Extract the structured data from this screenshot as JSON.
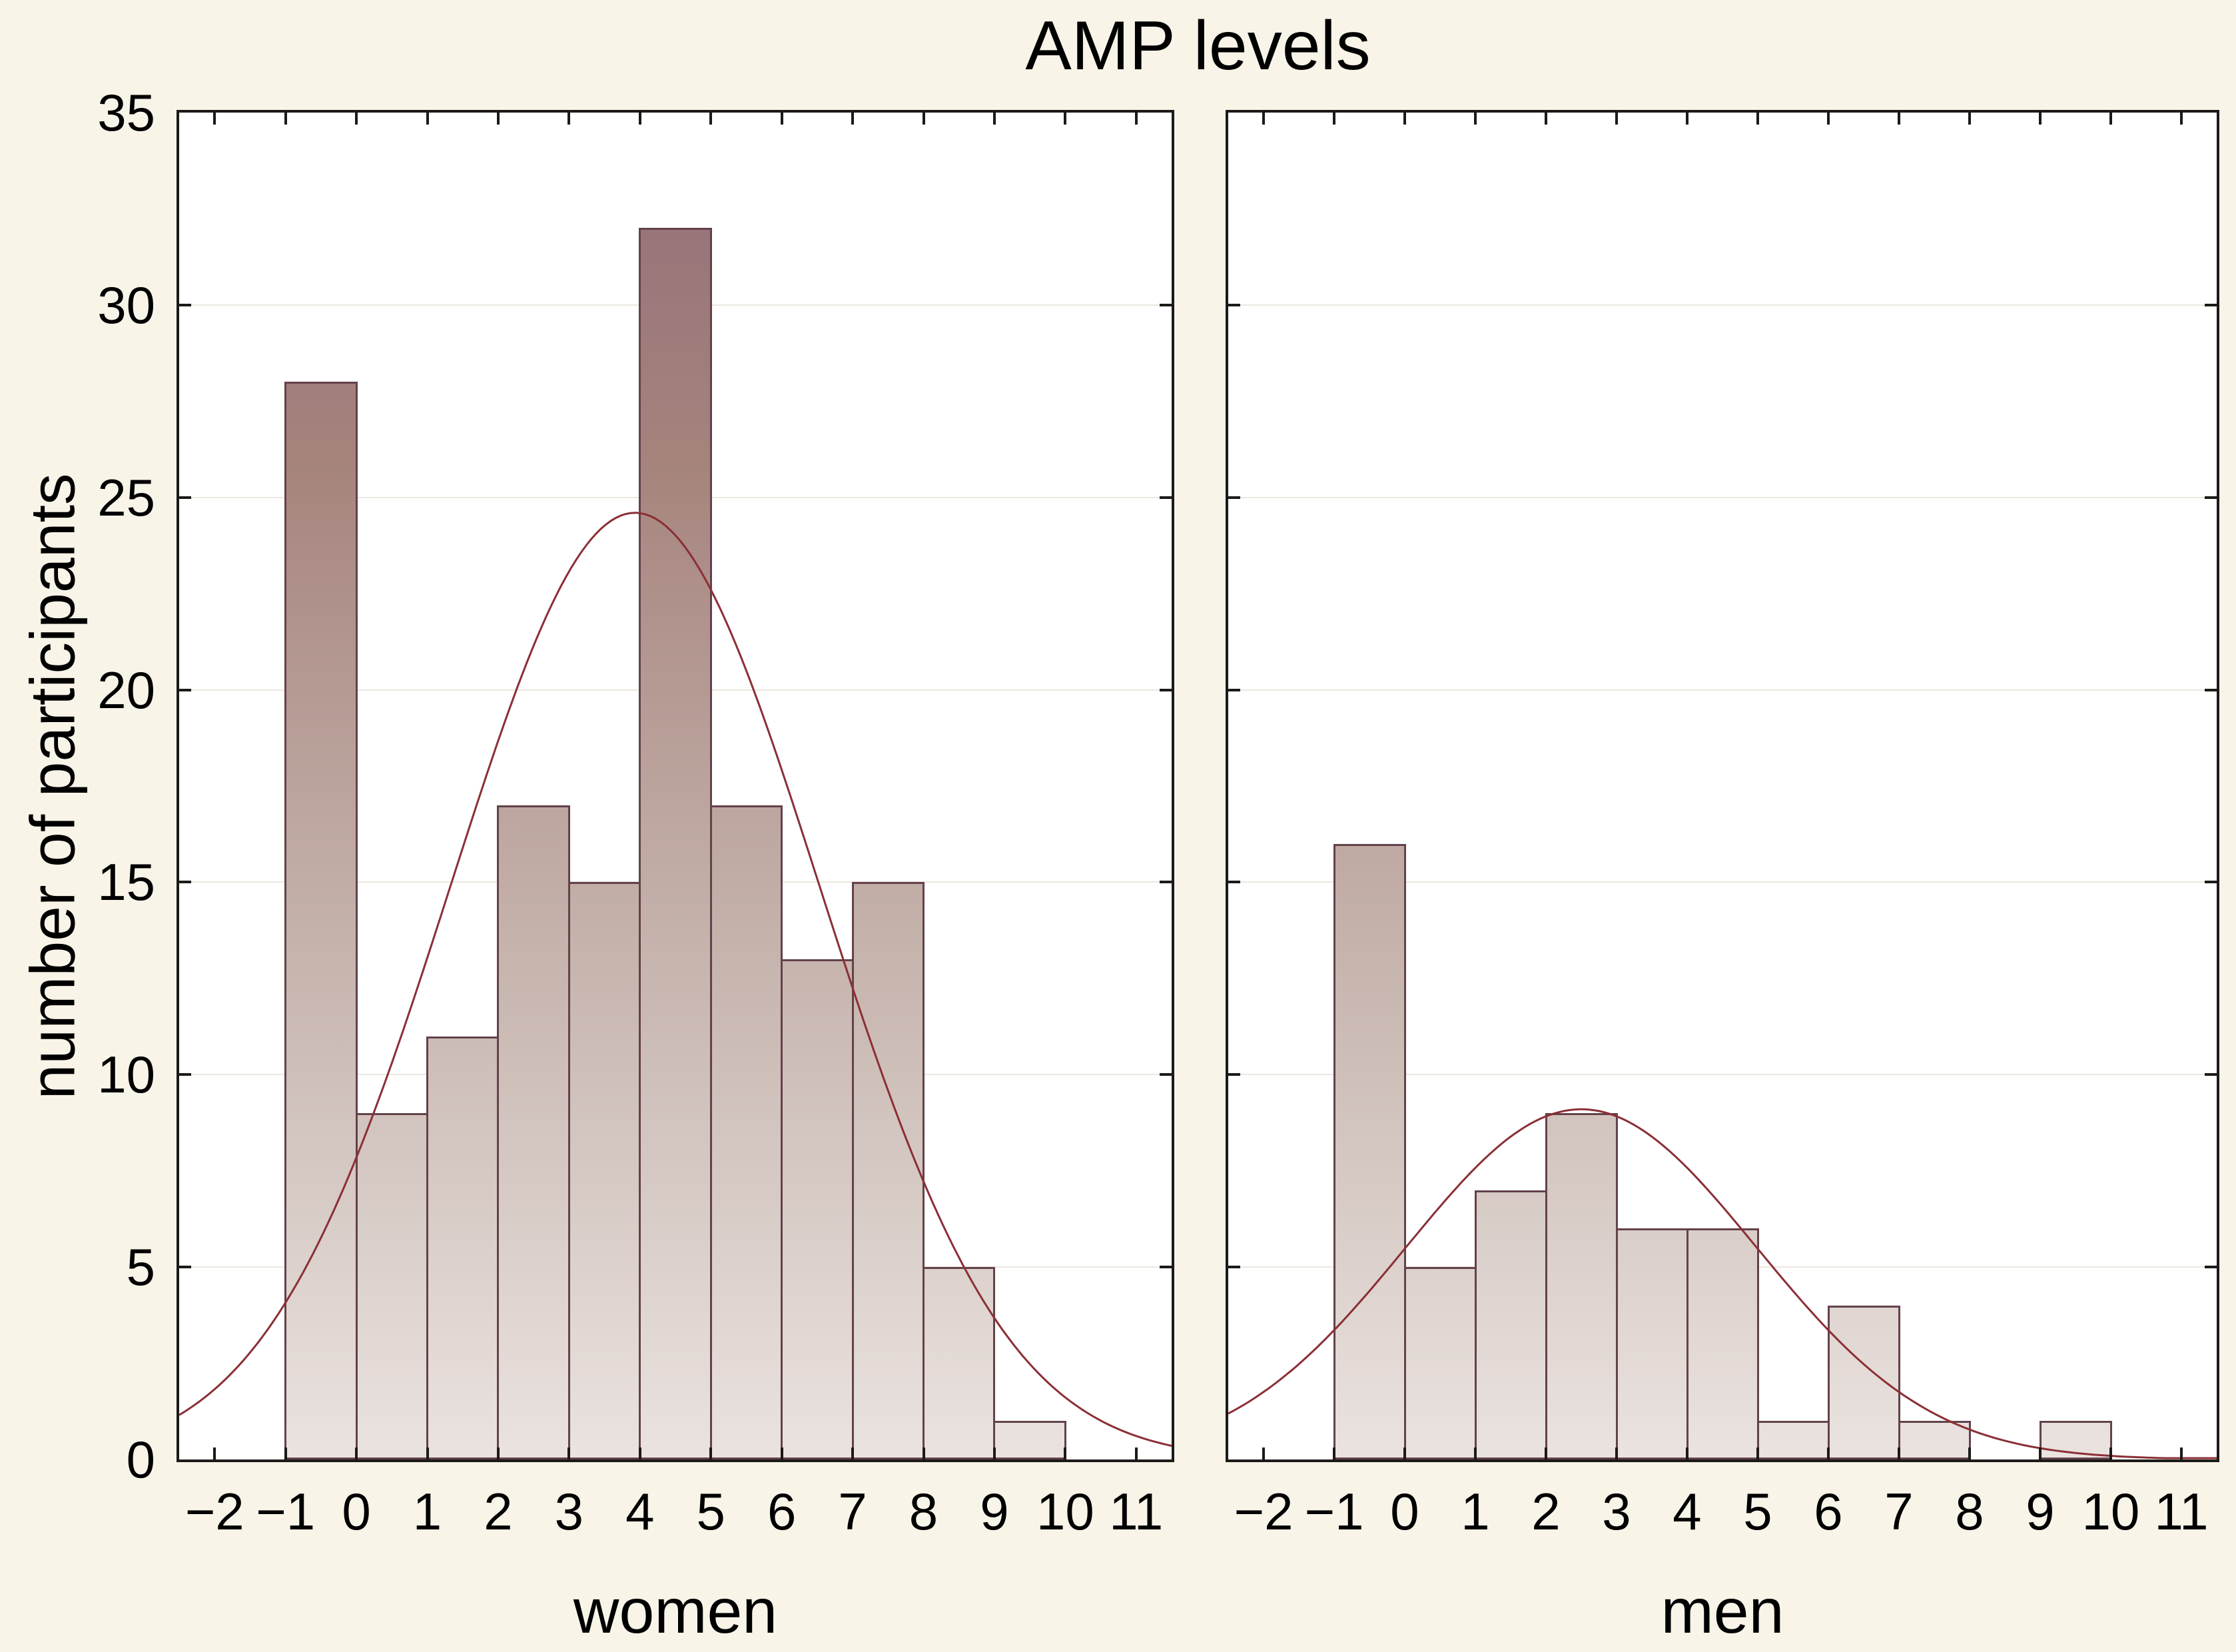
{
  "title": "AMP levels",
  "y_axis_title": "number of participants",
  "colors": {
    "page_background": "#f8f4e8",
    "plot_background": "#ffffff",
    "axis": "#1c1a18",
    "gridline": "#ece7e0",
    "bar_border": "#63424a",
    "bar_gradient_top": "#926d79",
    "bar_gradient_upper_mid": "#a5827c",
    "bar_gradient_lower_mid": "#c8b7b0",
    "bar_gradient_bottom": "#eae3e0",
    "curve": "#8b2f36",
    "text": "#000000"
  },
  "chart_data": [
    {
      "type": "bar",
      "subtype": "histogram-with-normal-curve",
      "title": "AMP levels",
      "xlabel": "women",
      "ylabel": "number of participants",
      "bin_edges": [
        -1,
        0,
        1,
        2,
        3,
        4,
        5,
        6,
        7,
        8,
        9,
        10
      ],
      "values": [
        28,
        9,
        11,
        17,
        15,
        32,
        17,
        13,
        15,
        5,
        1
      ],
      "xlim": [
        -2.5,
        11.5
      ],
      "ylim": [
        0,
        35
      ],
      "x_ticks": [
        -2,
        -1,
        0,
        1,
        2,
        3,
        4,
        5,
        6,
        7,
        8,
        9,
        10,
        11
      ],
      "x_tick_labels": [
        "−2",
        "−1",
        "0",
        "1",
        "2",
        "3",
        "4",
        "5",
        "6",
        "7",
        "8",
        "9",
        "10",
        "11"
      ],
      "y_ticks": [
        0,
        5,
        10,
        15,
        20,
        25,
        30,
        35
      ],
      "y_tick_labels": [
        "0",
        "5",
        "10",
        "15",
        "20",
        "25",
        "30",
        "35"
      ],
      "grid": "horizontal",
      "legend": "none",
      "normal_curve": {
        "mean": 3.93,
        "sd": 2.6,
        "peak": 24.6
      }
    },
    {
      "type": "bar",
      "subtype": "histogram-with-normal-curve",
      "title": "AMP levels",
      "xlabel": "men",
      "ylabel": "number of participants",
      "bin_edges": [
        -1,
        0,
        1,
        2,
        3,
        4,
        5,
        6,
        7,
        8,
        9,
        10
      ],
      "values": [
        16,
        5,
        7,
        9,
        6,
        6,
        1,
        4,
        1,
        0,
        1
      ],
      "xlim": [
        -2.5,
        11.5
      ],
      "ylim": [
        0,
        35
      ],
      "x_ticks": [
        -2,
        -1,
        0,
        1,
        2,
        3,
        4,
        5,
        6,
        7,
        8,
        9,
        10,
        11
      ],
      "x_tick_labels": [
        "−2",
        "−1",
        "0",
        "1",
        "2",
        "3",
        "4",
        "5",
        "6",
        "7",
        "8",
        "9",
        "10",
        "11"
      ],
      "y_ticks": [
        0,
        5,
        10,
        15,
        20,
        25,
        30,
        35
      ],
      "y_tick_labels": [
        "0",
        "5",
        "10",
        "15",
        "20",
        "25",
        "30",
        "35"
      ],
      "grid": "horizontal",
      "legend": "none",
      "normal_curve": {
        "mean": 2.5,
        "sd": 2.48,
        "peak": 9.1
      }
    }
  ]
}
